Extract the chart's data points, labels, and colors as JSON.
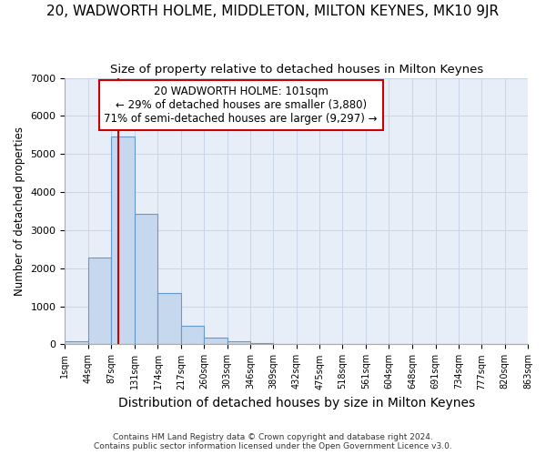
{
  "title1": "20, WADWORTH HOLME, MIDDLETON, MILTON KEYNES, MK10 9JR",
  "title2": "Size of property relative to detached houses in Milton Keynes",
  "xlabel": "Distribution of detached houses by size in Milton Keynes",
  "ylabel": "Number of detached properties",
  "footer1": "Contains HM Land Registry data © Crown copyright and database right 2024.",
  "footer2": "Contains public sector information licensed under the Open Government Licence v3.0.",
  "bin_labels": [
    "1sqm",
    "44sqm",
    "87sqm",
    "131sqm",
    "174sqm",
    "217sqm",
    "260sqm",
    "303sqm",
    "346sqm",
    "389sqm",
    "432sqm",
    "475sqm",
    "518sqm",
    "561sqm",
    "604sqm",
    "648sqm",
    "691sqm",
    "734sqm",
    "777sqm",
    "820sqm",
    "863sqm"
  ],
  "bar_values": [
    75,
    2280,
    5450,
    3420,
    1350,
    480,
    175,
    90,
    40,
    15,
    7,
    3,
    1,
    0,
    0,
    0,
    0,
    0,
    0,
    0
  ],
  "bin_edges": [
    1,
    44,
    87,
    131,
    174,
    217,
    260,
    303,
    346,
    389,
    432,
    475,
    518,
    561,
    604,
    648,
    691,
    734,
    777,
    820,
    863
  ],
  "bar_color": "#c5d8ee",
  "bar_edgecolor": "#6699cc",
  "property_size": 101,
  "annotation_line1": "20 WADWORTH HOLME: 101sqm",
  "annotation_line2": "← 29% of detached houses are smaller (3,880)",
  "annotation_line3": "71% of semi-detached houses are larger (9,297) →",
  "annotation_box_color": "#ffffff",
  "annotation_box_edgecolor": "#cc0000",
  "vline_color": "#cc0000",
  "grid_color": "#c8d4e8",
  "background_color": "#e8eef8",
  "ylim": [
    0,
    7000
  ],
  "title1_fontsize": 11,
  "title2_fontsize": 9.5,
  "xlabel_fontsize": 10,
  "ylabel_fontsize": 8.5,
  "annotation_fontsize": 8.5
}
